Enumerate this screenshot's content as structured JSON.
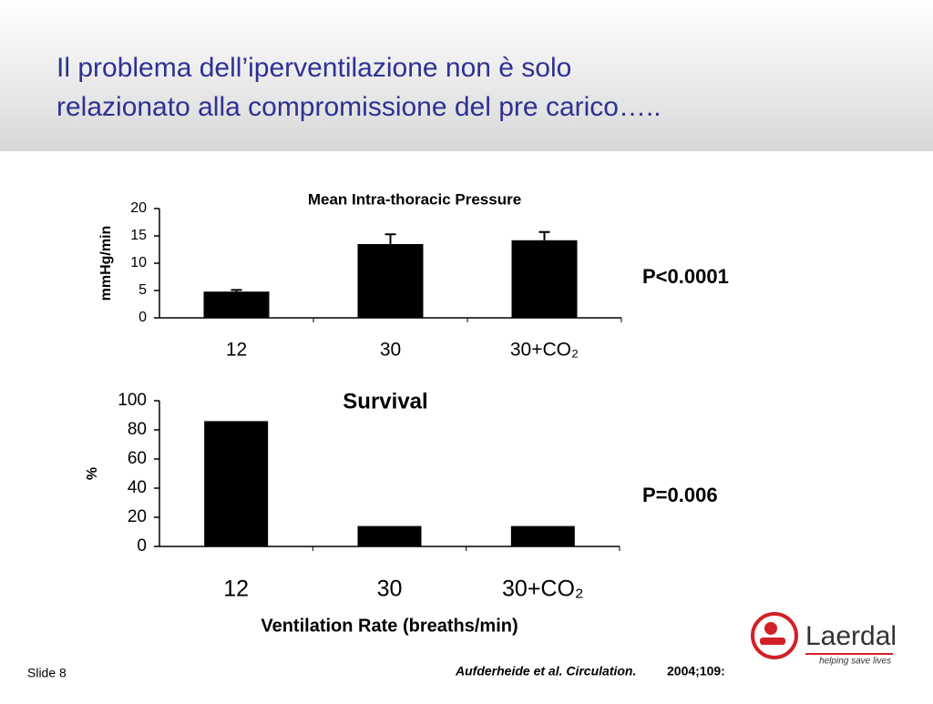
{
  "slide": {
    "title_lines": [
      "Il problema dell’iperventilazione non è solo",
      "relazionato alla compromissione del pre carico….."
    ],
    "slide_number": "Slide 8",
    "citation": {
      "authors": "Aufderheide et al. Circulation.",
      "details": "2004;109:"
    },
    "logo": {
      "name": "Laerdal",
      "tagline": "helping save lives"
    }
  },
  "chart_data": [
    {
      "type": "bar",
      "title": "Mean Intra-thoracic Pressure",
      "y_label": "mmHg/min",
      "categories": [
        "12",
        "30",
        "30+CO₂"
      ],
      "values": [
        4.8,
        13.5,
        14.2
      ],
      "errors": [
        0.3,
        1.8,
        1.5
      ],
      "color": "#000000",
      "ylim": [
        0,
        20
      ],
      "yticks": [
        0,
        5,
        10,
        15,
        20
      ],
      "annotation": "P<0.0001"
    },
    {
      "type": "bar",
      "title": "Survival",
      "y_label": "%",
      "x_label": "Ventilation Rate (breaths/min)",
      "categories": [
        "12",
        "30",
        "30+CO₂"
      ],
      "values": [
        86,
        14,
        14
      ],
      "color": "#000000",
      "ylim": [
        0,
        100
      ],
      "yticks": [
        0,
        20,
        40,
        60,
        80,
        100
      ],
      "annotation": "P=0.006"
    }
  ]
}
